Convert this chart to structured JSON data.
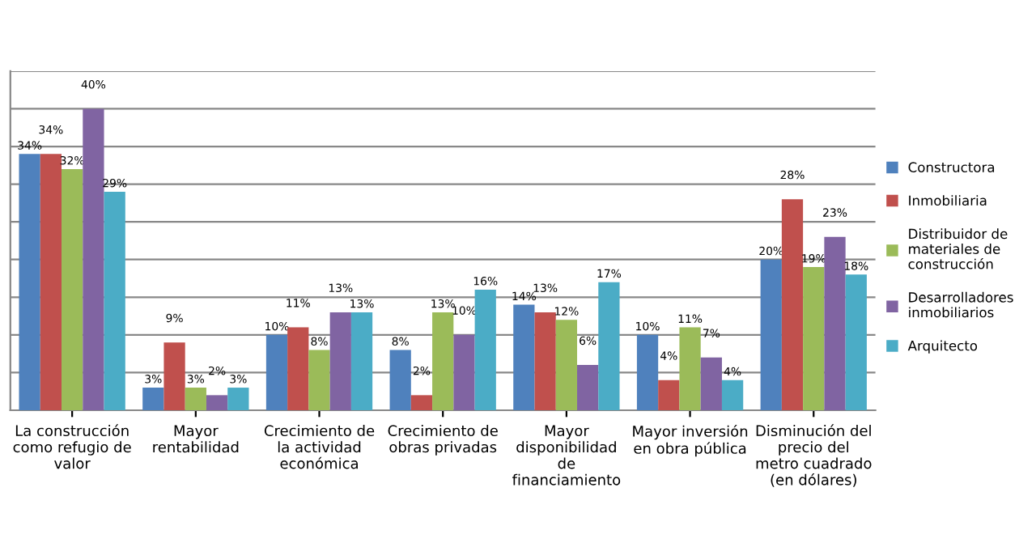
{
  "chart_data": {
    "type": "bar",
    "categories": [
      "La construcción\ncomo refugio de\nvalor",
      "Mayor\nrentabilidad",
      "Crecimiento de\nla actividad\neconómica",
      "Crecimiento de\nobras privadas",
      "Mayor\ndisponibilidad\nde\nfinanciamiento",
      "Mayor inversión\nen obra pública",
      "Disminución del\nprecio del\nmetro cuadrado\n(en dólares)"
    ],
    "series": [
      {
        "name": "Constructora",
        "color": "#4f81bd",
        "values": [
          34,
          3,
          10,
          8,
          14,
          10,
          20
        ],
        "value_labels": [
          "34%",
          "3%",
          "10%",
          "8%",
          "14%",
          "10%",
          "20%"
        ]
      },
      {
        "name": "Inmobiliaria",
        "color": "#c0504d",
        "values": [
          34,
          9,
          11,
          2,
          13,
          4,
          28
        ],
        "value_labels": [
          "34%",
          "9%",
          "11%",
          "2%",
          "13%",
          "4%",
          "28%"
        ]
      },
      {
        "name": "Distribuidor de\nmateriales de\nconstrucción",
        "color": "#9bbb59",
        "values": [
          32,
          3,
          8,
          13,
          12,
          11,
          19
        ],
        "value_labels": [
          "32%",
          "3%",
          "8%",
          "13%",
          "12%",
          "11%",
          "19%"
        ]
      },
      {
        "name": "Desarrolladores\ninmobiliarios",
        "color": "#8064a2",
        "values": [
          40,
          2,
          13,
          10,
          6,
          7,
          23
        ],
        "value_labels": [
          "40%",
          "2%",
          "13%",
          "10%",
          "6%",
          "7%",
          "23%"
        ]
      },
      {
        "name": "Arquitecto",
        "color": "#4bacc6",
        "values": [
          29,
          3,
          13,
          16,
          17,
          4,
          18
        ],
        "value_labels": [
          "29%",
          "3%",
          "13%",
          "16%",
          "17%",
          "4%",
          "18%"
        ]
      }
    ],
    "ylim": [
      0,
      45
    ],
    "yticks": [
      {
        "value": 0,
        "label": null
      },
      {
        "value": 5,
        "label": null
      },
      {
        "value": 10,
        "label": null
      },
      {
        "value": 15,
        "label": null
      },
      {
        "value": 20,
        "label": null
      },
      {
        "value": 25,
        "label": null
      },
      {
        "value": 30,
        "label": null
      },
      {
        "value": 35,
        "label": null
      },
      {
        "value": 40,
        "label": null
      },
      {
        "value": 45,
        "label": null
      }
    ],
    "tick_labels": "x",
    "grid": "y",
    "legend": "right"
  }
}
